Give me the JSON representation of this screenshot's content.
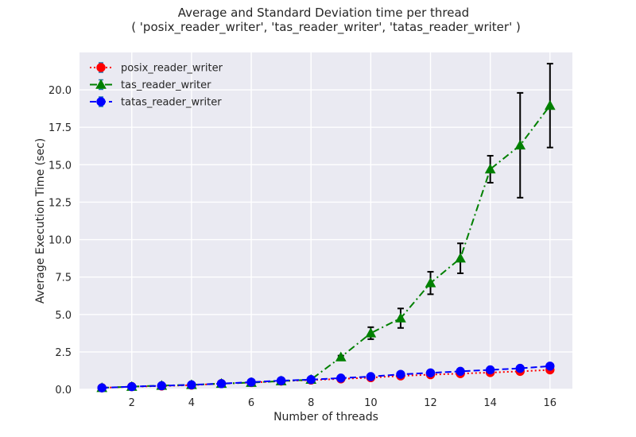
{
  "chart_data": {
    "type": "line",
    "title": "Average and Standard Deviation time per thread",
    "subtitle": "( 'posix_reader_writer', 'tas_reader_writer', 'tatas_reader_writer' )",
    "xlabel": "Number of threads",
    "ylabel": "Average Execution Time (sec)",
    "xlim": [
      0.25,
      16.75
    ],
    "ylim": [
      0,
      22.5
    ],
    "xticks": [
      2,
      4,
      6,
      8,
      10,
      12,
      14,
      16
    ],
    "yticks": [
      0.0,
      2.5,
      5.0,
      7.5,
      10.0,
      12.5,
      15.0,
      17.5,
      20.0
    ],
    "ytick_labels": [
      "0.0",
      "2.5",
      "5.0",
      "7.5",
      "10.0",
      "12.5",
      "15.0",
      "17.5",
      "20.0"
    ],
    "grid": true,
    "background": "#eaeaf2",
    "legend_position": "upper left",
    "x": [
      1,
      2,
      3,
      4,
      5,
      6,
      7,
      8,
      9,
      10,
      11,
      12,
      13,
      14,
      15,
      16
    ],
    "series": [
      {
        "name": "posix_reader_writer",
        "color": "#ff0000",
        "marker": "circle",
        "linestyle": "dotted",
        "values": [
          0.1,
          0.18,
          0.22,
          0.28,
          0.38,
          0.45,
          0.55,
          0.62,
          0.7,
          0.78,
          0.9,
          0.98,
          1.05,
          1.12,
          1.2,
          1.3
        ],
        "errors": [
          0.02,
          0.02,
          0.02,
          0.02,
          0.03,
          0.03,
          0.03,
          0.03,
          0.03,
          0.04,
          0.04,
          0.04,
          0.05,
          0.05,
          0.05,
          0.06
        ]
      },
      {
        "name": "tas_reader_writer",
        "color": "#008000",
        "marker": "triangle",
        "linestyle": "dashdot",
        "values": [
          0.1,
          0.18,
          0.25,
          0.3,
          0.38,
          0.45,
          0.55,
          0.65,
          2.15,
          3.75,
          4.75,
          7.1,
          8.75,
          14.7,
          16.3,
          18.95
        ],
        "errors": [
          0.02,
          0.02,
          0.02,
          0.03,
          0.03,
          0.03,
          0.03,
          0.04,
          0.1,
          0.4,
          0.65,
          0.75,
          1.0,
          0.9,
          3.5,
          2.8
        ]
      },
      {
        "name": "tatas_reader_writer",
        "color": "#0000ff",
        "marker": "circle",
        "linestyle": "dashed",
        "values": [
          0.1,
          0.18,
          0.24,
          0.3,
          0.38,
          0.48,
          0.58,
          0.65,
          0.75,
          0.85,
          1.0,
          1.1,
          1.2,
          1.3,
          1.4,
          1.55
        ],
        "errors": [
          0.02,
          0.02,
          0.02,
          0.02,
          0.03,
          0.03,
          0.03,
          0.03,
          0.03,
          0.04,
          0.04,
          0.04,
          0.05,
          0.05,
          0.05,
          0.06
        ]
      }
    ]
  }
}
